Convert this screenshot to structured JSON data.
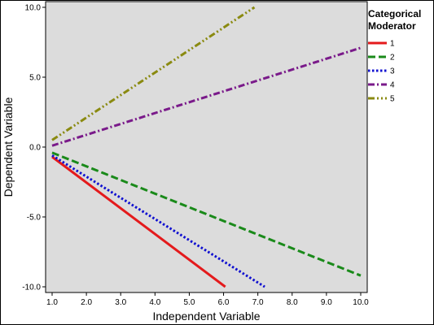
{
  "chart_data": {
    "type": "line",
    "xlabel": "Independent Variable",
    "ylabel": "Dependent Variable",
    "xlim": [
      1.0,
      10.0
    ],
    "ylim": [
      -10.0,
      10.0
    ],
    "x_ticks": [
      "1.0",
      "2.0",
      "3.0",
      "4.0",
      "5.0",
      "6.0",
      "7.0",
      "8.0",
      "9.0",
      "10.0"
    ],
    "y_ticks": [
      "10.0",
      "5.0",
      "0.0",
      "-5.0",
      "-10.0"
    ],
    "grid": false,
    "plot_background": "#dcdcdc",
    "legend": {
      "title_lines": [
        "Categorical",
        "Moderator"
      ],
      "placement": "right"
    },
    "series": [
      {
        "name": "1",
        "color": "#e41a1c",
        "dash": "solid",
        "x": [
          1.0,
          6.05
        ],
        "y": [
          -0.7,
          -10.0
        ]
      },
      {
        "name": "2",
        "color": "#1a8a1a",
        "dash": "dashed",
        "x": [
          1.0,
          10.0
        ],
        "y": [
          -0.4,
          -9.2
        ]
      },
      {
        "name": "3",
        "color": "#1010d0",
        "dash": "dotted",
        "x": [
          1.0,
          7.2
        ],
        "y": [
          -0.6,
          -10.0
        ]
      },
      {
        "name": "4",
        "color": "#7a1a8a",
        "dash": "dashdot",
        "x": [
          1.0,
          10.0
        ],
        "y": [
          0.1,
          7.1
        ]
      },
      {
        "name": "5",
        "color": "#8a8a10",
        "dash": "dashdotdot",
        "x": [
          1.0,
          6.9
        ],
        "y": [
          0.5,
          10.0
        ]
      }
    ]
  }
}
